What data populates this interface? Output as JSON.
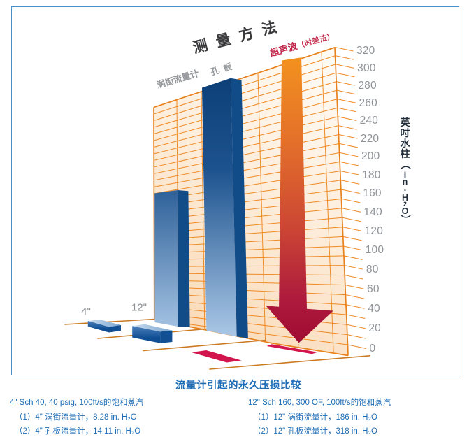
{
  "frame": {
    "border_color": "#4a8fc6"
  },
  "chart": {
    "title": "测量方法",
    "column_labels": {
      "vortex": "涡街流量计",
      "orifice": "孔板",
      "ultrasonic": "超声波",
      "ultrasonic_suffix": "（时差法）"
    },
    "y_axis_title": "英吋水柱（in. H₂O）",
    "row_labels": {
      "front": "4\"",
      "back": "12\""
    }
  },
  "chart_data": {
    "type": "bar",
    "title": "测量方法",
    "ylabel": "英吋水柱（in. H₂O）",
    "ylim": [
      0,
      320
    ],
    "yticks": [
      0,
      20,
      40,
      60,
      80,
      100,
      120,
      140,
      160,
      180,
      200,
      220,
      240,
      260,
      280,
      300,
      320
    ],
    "grid_step": 10,
    "categories": [
      "涡街流量计",
      "孔板",
      "超声波（时差法）"
    ],
    "series": [
      {
        "name": "4\" Sch 40, 40 psig, 100ft/s的饱和蒸汽",
        "values": [
          8.28,
          14.11,
          0
        ],
        "unit": "in. H₂O"
      },
      {
        "name": "12\" Sch 160, 300 OF, 100ft/s的饱和蒸汽",
        "values": [
          186,
          318,
          0
        ],
        "unit": "in. H₂O"
      }
    ],
    "annotations": {
      "ultrasonic_zero_marker": "红色箭头与地面色块表示超声波（时差法）无永久压损",
      "bar_color": "#11497f",
      "arrow_color_top": "#f3921e",
      "arrow_color_bottom": "#a00c32",
      "wall_line_color": "#ee8a25"
    },
    "legend_position": "bottom"
  },
  "caption": {
    "text": "流量计引起的永久压损比较",
    "color": "#1e6db6"
  },
  "legend": {
    "left": {
      "header": "4\" Sch 40, 40 psig, 100ft/s的饱和蒸汽",
      "item1": "（1）4\" 涡街流量计，8.28 in. H₂O",
      "item2": "（2）4\" 孔板流量计，14.11 in. H₂O"
    },
    "right": {
      "header": "12\" Sch 160, 300 OF, 100ft/s的饱和蒸汽",
      "item1": "（1）12\" 涡街流量计，186 in. H₂O",
      "item2": "（2）12\" 孔板流量计，318 in. H₂O"
    }
  }
}
